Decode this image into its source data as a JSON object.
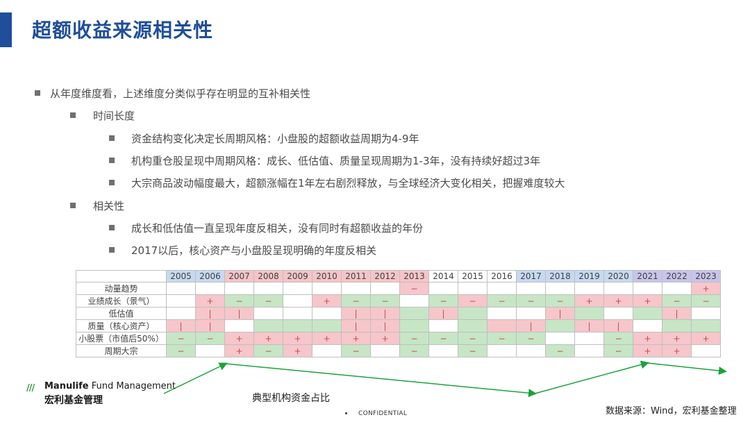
{
  "title": "超额收益来源相关性",
  "bullets": [
    {
      "level": 1,
      "text": "从年度维度看，上述维度分类似乎存在明显的互补相关性"
    },
    {
      "level": 2,
      "text": "时间长度"
    },
    {
      "level": 3,
      "text": "资金结构变化决定长周期风格：小盘股的超额收益周期为4-9年"
    },
    {
      "level": 3,
      "text": "机构重仓股呈现中周期风格：成长、低估值、质量呈现周期为1-3年，没有持续好超过3年"
    },
    {
      "level": 3,
      "text": "大宗商品波动幅度最大，超额涨幅在1年左右剧烈释放，与全球经济大变化相关，把握难度较大"
    },
    {
      "level": 2,
      "text": "相关性"
    },
    {
      "level": 3,
      "text": "成长和低估值一直呈现年度反相关，没有同时有超额收益的年份"
    },
    {
      "level": 3,
      "text": "2017以后，核心资产与小盘股呈现明确的年度反相关"
    }
  ],
  "table": {
    "years": [
      "2005",
      "2006",
      "2007",
      "2008",
      "2009",
      "2010",
      "2011",
      "2012",
      "2013",
      "2014",
      "2015",
      "2016",
      "2017",
      "2018",
      "2019",
      "2020",
      "2021",
      "2022",
      "2023"
    ],
    "year_colors": [
      "blue",
      "blue",
      "pink",
      "pink",
      "pink",
      "pink",
      "pink",
      "pink",
      "pink",
      "blank",
      "blank",
      "blank",
      "blue",
      "blue",
      "blue",
      "blue",
      "lav",
      "lav",
      "lav"
    ],
    "rows": [
      {
        "label": "动量趋势",
        "cells": [
          "w",
          "w",
          "w",
          "w",
          "w",
          "w",
          "w",
          "w",
          "r",
          "w",
          "w",
          "w",
          "w",
          "w",
          "w",
          "w",
          "w",
          "w",
          "r"
        ],
        "marks": [
          "",
          "",
          "",
          "",
          "",
          "",
          "",
          "",
          "−",
          "",
          "",
          "",
          "",
          "",
          "",
          "",
          "",
          "",
          "+"
        ]
      },
      {
        "label": "业绩成长（景气）",
        "cells": [
          "w",
          "r",
          "g",
          "g",
          "w",
          "r",
          "g",
          "g",
          "w",
          "g",
          "r",
          "g",
          "g",
          "g",
          "r",
          "r",
          "r",
          "g",
          "g"
        ],
        "marks": [
          "",
          "+",
          "−",
          "−",
          "",
          "+",
          "−",
          "−",
          "",
          "−",
          "−",
          "−",
          "−",
          "−",
          "+",
          "+",
          "+",
          "−",
          "−"
        ]
      },
      {
        "label": "低估值",
        "cells": [
          "w",
          "r",
          "r",
          "w",
          "w",
          "w",
          "r",
          "r",
          "g",
          "r",
          "g",
          "w",
          "w",
          "r",
          "g",
          "w",
          "g",
          "r",
          "w"
        ],
        "marks": [
          "",
          "|",
          "|",
          "",
          "",
          "",
          "|",
          "|",
          "",
          "|",
          "",
          "",
          "",
          "|",
          "",
          "",
          "",
          "|",
          ""
        ]
      },
      {
        "label": "质量（核心资产）",
        "cells": [
          "r",
          "r",
          "w",
          "g",
          "g",
          "g",
          "r",
          "r",
          "g",
          "w",
          "g",
          "r",
          "r",
          "g",
          "r",
          "r",
          "w",
          "g",
          "g"
        ],
        "marks": [
          "|",
          "|",
          "",
          "",
          "",
          "",
          "|",
          "|",
          "",
          "",
          "",
          "",
          "|",
          "",
          "|",
          "|",
          "",
          "",
          ""
        ]
      },
      {
        "label": "小股票（市值后50%）",
        "cells": [
          "g",
          "g",
          "r",
          "r",
          "r",
          "r",
          "r",
          "r",
          "g",
          "g",
          "g",
          "g",
          "g",
          "w",
          "w",
          "g",
          "r",
          "r",
          "r"
        ],
        "marks": [
          "−",
          "−",
          "+",
          "+",
          "+",
          "+",
          "+",
          "+",
          "−",
          "−",
          "−",
          "−",
          "−",
          "",
          "",
          "−",
          "+",
          "+",
          "+"
        ]
      },
      {
        "label": "周期大宗",
        "cells": [
          "g",
          "w",
          "r",
          "g",
          "r",
          "w",
          "g",
          "w",
          "g",
          "w",
          "g",
          "w",
          "w",
          "g",
          "w",
          "g",
          "r",
          "r",
          "w"
        ],
        "marks": [
          "−",
          "",
          "+",
          "−",
          "+",
          "",
          "−",
          "",
          "−",
          "",
          "−",
          "",
          "",
          "−",
          "",
          "−",
          "+",
          "+",
          ""
        ]
      }
    ]
  },
  "caption": "典型机构资金占比",
  "source": "数据来源：Wind，宏利基金整理",
  "confidential": "CONFIDENTIAL",
  "logo": {
    "en_bold": "Manulife",
    "en_rest": " Fund Management",
    "cn": "宏利基金管理",
    "mark": "///"
  },
  "colors": {
    "accent": "#1f4e9a",
    "arrow": "#1aa33a",
    "positive": "#f6c6ca",
    "negative": "#c6e6c6"
  }
}
